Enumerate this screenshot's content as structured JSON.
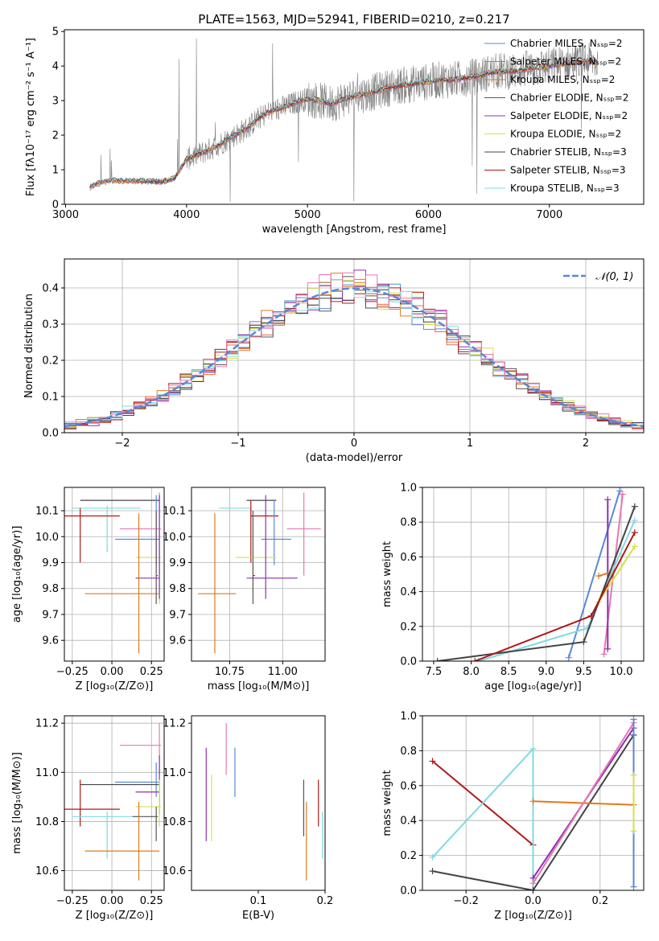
{
  "colors": {
    "Chabrier MILES": "#5b87d6",
    "Salpeter MILES": "#e26b55",
    "Kroupa MILES": "#e07a1c",
    "Chabrier ELODIE": "#555555",
    "Salpeter ELODIE": "#8d2fb4",
    "Kroupa ELODIE": "#d6e04a",
    "Chabrier STELIB": "#444444",
    "Salpeter STELIB": "#b01818",
    "Kroupa STELIB": "#7fdbe0",
    "pink": "#e678b2",
    "grid": "#b0b0b0",
    "spectrum": "#808080"
  },
  "chart_data": [
    {
      "id": "spectrum",
      "type": "line",
      "title": "PLATE=1563, MJD=52941, FIBERID=0210, z=0.217",
      "xlabel": "wavelength [Angstrom, rest frame]",
      "ylabel": "Flux [fλ10⁻¹⁷ erg cm⁻² s⁻¹ A⁻¹]",
      "xlim": [
        2990,
        7780
      ],
      "ylim": [
        0,
        5.05
      ],
      "xticks": [
        3000,
        4000,
        5000,
        6000,
        7000
      ],
      "yticks": [
        0,
        1,
        2,
        3,
        4,
        5
      ],
      "legend_position": "top-right",
      "series": [
        {
          "name": "Chabrier MILES, Nₛₛₚ=2"
        },
        {
          "name": "Salpeter MILES, Nₛₛₚ=2"
        },
        {
          "name": "Kroupa MILES, Nₛₛₚ=2"
        },
        {
          "name": "Chabrier ELODIE, Nₛₛₚ=2"
        },
        {
          "name": "Salpeter ELODIE, Nₛₛₚ=2"
        },
        {
          "name": "Kroupa ELODIE, Nₛₛₚ=2"
        },
        {
          "name": "Chabrier STELIB, Nₛₛₚ=3"
        },
        {
          "name": "Salpeter STELIB, Nₛₛₚ=3"
        },
        {
          "name": "Kroupa STELIB, Nₛₛₚ=3"
        }
      ],
      "continuum": {
        "x": [
          3200,
          3300,
          3400,
          3500,
          3600,
          3700,
          3800,
          3900,
          4000,
          4100,
          4200,
          4300,
          4400,
          4500,
          4600,
          4700,
          4800,
          4900,
          5000,
          5100,
          5200,
          5300,
          5400,
          5500,
          5600,
          5700,
          5800,
          5900,
          6000,
          6100,
          6200,
          6300,
          6400,
          6500,
          6600,
          6700,
          6800,
          6900,
          7000,
          7100,
          7200,
          7300,
          7400
        ],
        "y": [
          0.5,
          0.65,
          0.7,
          0.68,
          0.68,
          0.67,
          0.65,
          0.75,
          1.3,
          1.45,
          1.6,
          1.8,
          2.0,
          2.2,
          2.5,
          2.7,
          2.8,
          2.95,
          3.05,
          3.0,
          2.9,
          3.05,
          3.15,
          3.2,
          3.3,
          3.4,
          3.45,
          3.5,
          3.55,
          3.6,
          3.6,
          3.65,
          3.7,
          3.8,
          3.85,
          3.85,
          3.9,
          3.95,
          4.0,
          4.05,
          4.1,
          4.15,
          4.1
        ]
      }
    },
    {
      "id": "residuals",
      "type": "bar",
      "xlabel": "(data-model)/error",
      "ylabel": "Normed distribution",
      "xlim": [
        -2.5,
        2.5
      ],
      "ylim": [
        0,
        0.48
      ],
      "xticks": [
        -2,
        -1,
        0,
        1,
        2
      ],
      "yticks": [
        0.0,
        0.1,
        0.2,
        0.3,
        0.4
      ],
      "legend": "𝒩(0, 1)",
      "legend_position": "top-right",
      "gaussian": {
        "mean": 0,
        "sigma": 1
      }
    },
    {
      "id": "age_vs_Z",
      "type": "scatter",
      "xlabel": "Z [log₁₀(Z/Z⊙)]",
      "ylabel": "age  [log₁₀(age/yr)]",
      "xlim": [
        -0.3,
        0.33
      ],
      "ylim": [
        9.52,
        10.19
      ],
      "xticks": [
        -0.25,
        0.0,
        0.25
      ],
      "xticklabels": [
        "−0.25",
        "0.00",
        "0.25"
      ],
      "yticks": [
        9.6,
        9.7,
        9.8,
        9.9,
        10.0,
        10.1
      ],
      "points": [
        {
          "c": "Chabrier STELIB",
          "x": 0.08,
          "xe": [
            -0.2,
            0.3
          ],
          "y": 10.14,
          "ye": [
            10.14,
            10.14
          ]
        },
        {
          "c": "Kroupa STELIB",
          "x": -0.03,
          "xe": [
            -0.25,
            0.18
          ],
          "y": 10.11,
          "ye": [
            9.94,
            10.12
          ]
        },
        {
          "c": "Salpeter STELIB",
          "x": -0.2,
          "xe": [
            -0.3,
            0.05
          ],
          "y": 10.08,
          "ye": [
            9.9,
            10.11
          ]
        },
        {
          "c": "pink",
          "x": 0.3,
          "xe": [
            0.05,
            0.31
          ],
          "y": 10.03,
          "ye": [
            9.85,
            10.17
          ]
        },
        {
          "c": "Chabrier MILES",
          "x": 0.28,
          "xe": [
            0.02,
            0.3
          ],
          "y": 9.99,
          "ye": [
            9.89,
            10.16
          ]
        },
        {
          "c": "Kroupa ELODIE",
          "x": 0.3,
          "xe": [
            0.15,
            0.31
          ],
          "y": 9.92,
          "ye": [
            9.74,
            10.05
          ]
        },
        {
          "c": "Salpeter ELODIE",
          "x": 0.3,
          "xe": [
            0.15,
            0.3
          ],
          "y": 9.84,
          "ye": [
            9.76,
            10.16
          ]
        },
        {
          "c": "Kroupa MILES",
          "x": 0.17,
          "xe": [
            -0.17,
            0.3
          ],
          "y": 9.78,
          "ye": [
            9.55,
            10.09
          ]
        },
        {
          "c": "Chabrier ELODIE",
          "x": 0.28,
          "xe": [
            0.28,
            0.29
          ],
          "y": 9.85,
          "ye": [
            9.74,
            10.1
          ]
        }
      ]
    },
    {
      "id": "age_vs_mass",
      "type": "scatter",
      "xlabel": "mass [log₁₀(M/M⊙)]",
      "ylim": [
        9.52,
        10.19
      ],
      "xlim": [
        10.57,
        11.2
      ],
      "xticks": [
        10.75,
        11.0
      ],
      "xticklabels": [
        "10.75",
        "11.00"
      ],
      "yticks": [
        9.6,
        9.7,
        9.8,
        9.9,
        10.0,
        10.1
      ],
      "points": [
        {
          "c": "Chabrier STELIB",
          "x": 10.95,
          "xe": [
            10.83,
            10.97
          ],
          "y": 10.14,
          "ye": [
            10.14,
            10.14
          ]
        },
        {
          "c": "Kroupa STELIB",
          "x": 10.82,
          "xe": [
            10.7,
            10.85
          ],
          "y": 10.11,
          "ye": [
            10.11,
            10.11
          ]
        },
        {
          "c": "Salpeter STELIB",
          "x": 10.85,
          "xe": [
            10.85,
            10.98
          ],
          "y": 10.08,
          "ye": [
            9.9,
            10.14
          ]
        },
        {
          "c": "pink",
          "x": 11.1,
          "xe": [
            11.02,
            11.18
          ],
          "y": 10.03,
          "ye": [
            9.85,
            10.17
          ]
        },
        {
          "c": "Chabrier MILES",
          "x": 10.96,
          "xe": [
            10.9,
            11.04
          ],
          "y": 9.99,
          "ye": [
            9.89,
            10.14
          ]
        },
        {
          "c": "Kroupa ELODIE",
          "x": 10.86,
          "xe": [
            10.78,
            10.97
          ],
          "y": 9.92,
          "ye": [
            9.78,
            10.05
          ]
        },
        {
          "c": "Salpeter ELODIE",
          "x": 10.92,
          "xe": [
            10.83,
            11.07
          ],
          "y": 9.84,
          "ye": [
            9.76,
            10.16
          ]
        },
        {
          "c": "Kroupa MILES",
          "x": 10.68,
          "xe": [
            10.6,
            10.78
          ],
          "y": 9.78,
          "ye": [
            9.55,
            10.09
          ]
        },
        {
          "c": "Chabrier ELODIE",
          "x": 10.86,
          "xe": [
            10.86,
            10.87
          ],
          "y": 9.85,
          "ye": [
            9.74,
            10.1
          ]
        }
      ]
    },
    {
      "id": "mass_weight_vs_age",
      "type": "line",
      "xlabel": "age  [log₁₀(age/yr)]",
      "ylabel": "mass weight",
      "xlim": [
        7.35,
        10.3
      ],
      "ylim": [
        0,
        1.0
      ],
      "xticks": [
        7.5,
        8.0,
        8.5,
        9.0,
        9.5,
        10.0
      ],
      "xticklabels": [
        "7.5",
        "8.0",
        "8.5",
        "9.0",
        "9.5",
        "10.0"
      ],
      "yticks": [
        0.0,
        0.2,
        0.4,
        0.6,
        0.8,
        1.0
      ],
      "series": [
        {
          "c": "Chabrier MILES",
          "x": [
            9.3,
            9.98
          ],
          "y": [
            0.02,
            0.98
          ]
        },
        {
          "c": "pink",
          "x": [
            9.77,
            10.02
          ],
          "y": [
            0.04,
            0.96
          ]
        },
        {
          "c": "Salpeter ELODIE",
          "x": [
            9.82,
            9.82
          ],
          "y": [
            0.07,
            0.93
          ]
        },
        {
          "c": "Kroupa MILES",
          "x": [
            9.7,
            9.85
          ],
          "y": [
            0.49,
            0.51
          ]
        },
        {
          "c": "Kroupa ELODIE",
          "x": [
            9.7,
            10.18
          ],
          "y": [
            0.34,
            0.66
          ]
        },
        {
          "c": "Kroupa STELIB",
          "x": [
            8.1,
            9.55,
            10.18
          ],
          "y": [
            0.0,
            0.19,
            0.81
          ]
        },
        {
          "c": "Chabrier STELIB",
          "x": [
            7.55,
            9.5,
            10.18
          ],
          "y": [
            0.0,
            0.11,
            0.89
          ]
        },
        {
          "c": "Salpeter STELIB",
          "x": [
            8.05,
            9.6,
            10.18
          ],
          "y": [
            0.0,
            0.26,
            0.74
          ]
        }
      ]
    },
    {
      "id": "mass_vs_Z",
      "type": "scatter",
      "xlabel": "Z [log₁₀(Z/Z⊙)]",
      "ylabel": "mass [log₁₀(M/M⊙)]",
      "xlim": [
        -0.3,
        0.33
      ],
      "ylim": [
        10.52,
        11.23
      ],
      "xticks": [
        -0.25,
        0.0,
        0.25
      ],
      "xticklabels": [
        "−0.25",
        "0.00",
        "0.25"
      ],
      "yticks": [
        10.6,
        10.8,
        11.0,
        11.2
      ],
      "points": [
        {
          "c": "pink",
          "x": 0.3,
          "xe": [
            0.05,
            0.31
          ],
          "y": 11.11,
          "ye": [
            10.99,
            11.2
          ]
        },
        {
          "c": "Chabrier MILES",
          "x": 0.28,
          "xe": [
            0.02,
            0.3
          ],
          "y": 10.96,
          "ye": [
            10.9,
            11.04
          ]
        },
        {
          "c": "Chabrier STELIB",
          "x": 0.08,
          "xe": [
            -0.2,
            0.3
          ],
          "y": 10.95,
          "ye": [
            10.95,
            10.95
          ]
        },
        {
          "c": "Salpeter ELODIE",
          "x": 0.3,
          "xe": [
            0.15,
            0.3
          ],
          "y": 10.92,
          "ye": [
            10.83,
            11.07
          ]
        },
        {
          "c": "Kroupa ELODIE",
          "x": 0.3,
          "xe": [
            0.15,
            0.31
          ],
          "y": 10.86,
          "ye": [
            10.78,
            10.97
          ]
        },
        {
          "c": "Salpeter STELIB",
          "x": -0.2,
          "xe": [
            -0.3,
            0.05
          ],
          "y": 10.85,
          "ye": [
            10.78,
            10.97
          ]
        },
        {
          "c": "Kroupa STELIB",
          "x": -0.03,
          "xe": [
            -0.25,
            0.18
          ],
          "y": 10.82,
          "ye": [
            10.65,
            10.84
          ]
        },
        {
          "c": "Chabrier ELODIE",
          "x": 0.28,
          "xe": [
            0.13,
            0.29
          ],
          "y": 10.82,
          "ye": [
            10.72,
            10.86
          ]
        },
        {
          "c": "Kroupa MILES",
          "x": 0.17,
          "xe": [
            -0.17,
            0.3
          ],
          "y": 10.68,
          "ye": [
            10.56,
            10.88
          ]
        }
      ]
    },
    {
      "id": "mass_vs_EBV",
      "type": "scatter",
      "xlabel": "E(B-V)",
      "xlim": [
        0.0,
        0.2
      ],
      "ylim": [
        10.52,
        11.23
      ],
      "xticks": [
        0.1,
        0.2
      ],
      "xticklabels": [
        "0.1",
        "0.2"
      ],
      "yticks": [
        10.6,
        10.8,
        11.0,
        11.2
      ],
      "points": [
        {
          "c": "pink",
          "x": 0.052,
          "y": 11.11,
          "ye": [
            10.99,
            11.2
          ]
        },
        {
          "c": "Chabrier MILES",
          "x": 0.065,
          "y": 10.96,
          "ye": [
            10.9,
            11.1
          ]
        },
        {
          "c": "Salpeter ELODIE",
          "x": 0.022,
          "y": 10.92,
          "ye": [
            10.72,
            11.1
          ]
        },
        {
          "c": "Kroupa ELODIE",
          "x": 0.03,
          "y": 10.86,
          "ye": [
            10.72,
            10.99
          ]
        },
        {
          "c": "Chabrier ELODIE",
          "x": 0.168,
          "y": 10.85,
          "ye": [
            10.74,
            10.97
          ]
        },
        {
          "c": "Kroupa MILES",
          "x": 0.172,
          "y": 10.75,
          "ye": [
            10.56,
            10.88
          ]
        },
        {
          "c": "Salpeter STELIB",
          "x": 0.19,
          "y": 10.85,
          "ye": [
            10.78,
            10.97
          ]
        },
        {
          "c": "Kroupa STELIB",
          "x": 0.196,
          "y": 10.75,
          "ye": [
            10.65,
            10.84
          ]
        }
      ]
    },
    {
      "id": "mass_weight_vs_Z",
      "type": "line",
      "xlabel": "Z [log₁₀(Z/Z⊙)]",
      "ylabel": "mass weight",
      "xlim": [
        -0.33,
        0.33
      ],
      "ylim": [
        0,
        1.0
      ],
      "xticks": [
        -0.2,
        0.0,
        0.2
      ],
      "xticklabels": [
        "−0.2",
        "0.0",
        "0.2"
      ],
      "yticks": [
        0.0,
        0.2,
        0.4,
        0.6,
        0.8,
        1.0
      ],
      "series": [
        {
          "c": "Salpeter STELIB",
          "x": [
            -0.3,
            0.0
          ],
          "y": [
            0.74,
            0.26
          ]
        },
        {
          "c": "Kroupa STELIB",
          "x": [
            -0.3,
            0.0,
            0.0
          ],
          "y": [
            0.19,
            0.81,
            0.0
          ]
        },
        {
          "c": "Chabrier STELIB",
          "x": [
            -0.3,
            0.0,
            0.3
          ],
          "y": [
            0.11,
            0.0,
            0.89
          ]
        },
        {
          "c": "Kroupa MILES",
          "x": [
            0.0,
            0.3
          ],
          "y": [
            0.51,
            0.49
          ]
        },
        {
          "c": "Salpeter ELODIE",
          "x": [
            0.0,
            0.3
          ],
          "y": [
            0.07,
            0.93
          ]
        },
        {
          "c": "pink",
          "x": [
            0.0,
            0.3
          ],
          "y": [
            0.04,
            0.96
          ]
        },
        {
          "c": "Chabrier MILES",
          "x": [
            0.3,
            0.3
          ],
          "y": [
            0.02,
            0.98
          ]
        },
        {
          "c": "Kroupa ELODIE",
          "x": [
            0.3,
            0.3
          ],
          "y": [
            0.34,
            0.66
          ]
        }
      ]
    }
  ]
}
